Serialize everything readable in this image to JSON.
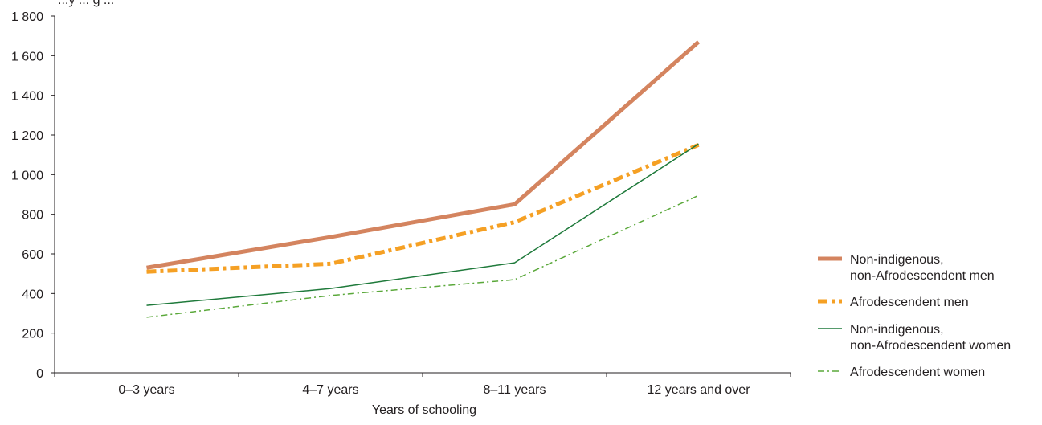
{
  "chart_data": {
    "type": "line",
    "title": "",
    "xlabel": "Years of schooling",
    "ylabel": "",
    "top_text_partial": "...y ... g ...",
    "categories": [
      "0–3 years",
      "4–7 years",
      "8–11 years",
      "12 years and over"
    ],
    "ylim": [
      0,
      1800
    ],
    "yticks": [
      0,
      200,
      400,
      600,
      800,
      1000,
      1200,
      1400,
      1600,
      1800
    ],
    "ytick_labels": [
      "0",
      "200",
      "400",
      "600",
      "800",
      "1 000",
      "1 200",
      "1 400",
      "1 600",
      "1 800"
    ],
    "grid": false,
    "legend_position": "right",
    "series": [
      {
        "name": "Non-indigenous, non-Afrodescendent men",
        "legend_lines": [
          "Non-indigenous,",
          "non-Afrodescendent men"
        ],
        "values": [
          530,
          685,
          850,
          1670
        ],
        "color": "#d4845f",
        "style": "solid-thick"
      },
      {
        "name": "Afrodescendent men",
        "legend_lines": [
          "Afrodescendent men"
        ],
        "values": [
          510,
          550,
          760,
          1150
        ],
        "color": "#f5a024",
        "style": "dash-dot-thick"
      },
      {
        "name": "Non-indigenous, non-Afrodescendent women",
        "legend_lines": [
          "Non-indigenous,",
          "non-Afrodescendent women"
        ],
        "values": [
          340,
          425,
          555,
          1155
        ],
        "color": "#1f7a3b",
        "style": "solid-thin"
      },
      {
        "name": "Afrodescendent women",
        "legend_lines": [
          "Afrodescendent women"
        ],
        "values": [
          280,
          390,
          470,
          895
        ],
        "color": "#5aa83a",
        "style": "dash-dot-thin"
      }
    ]
  }
}
